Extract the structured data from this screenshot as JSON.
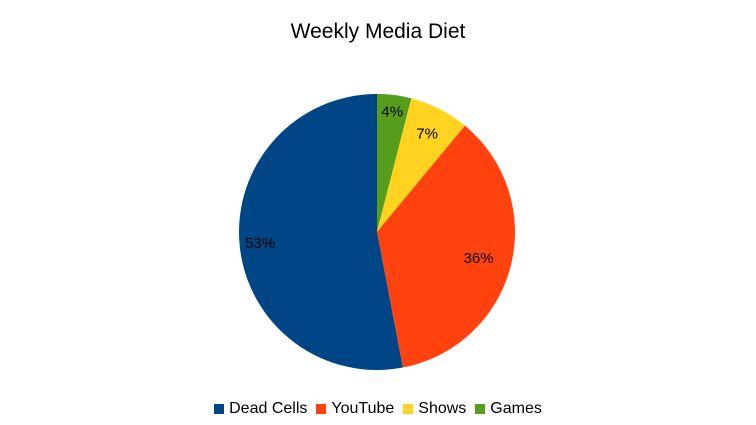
{
  "chart_data": {
    "type": "pie",
    "title": "Weekly Media Diet",
    "categories": [
      "Dead Cells",
      "YouTube",
      "Shows",
      "Games"
    ],
    "values": [
      53,
      36,
      7,
      4
    ],
    "labels": [
      "53%",
      "36%",
      "7%",
      "4%"
    ],
    "colors": [
      "#004586",
      "#ff420e",
      "#ffd320",
      "#579d1c"
    ],
    "legend_position": "bottom"
  }
}
